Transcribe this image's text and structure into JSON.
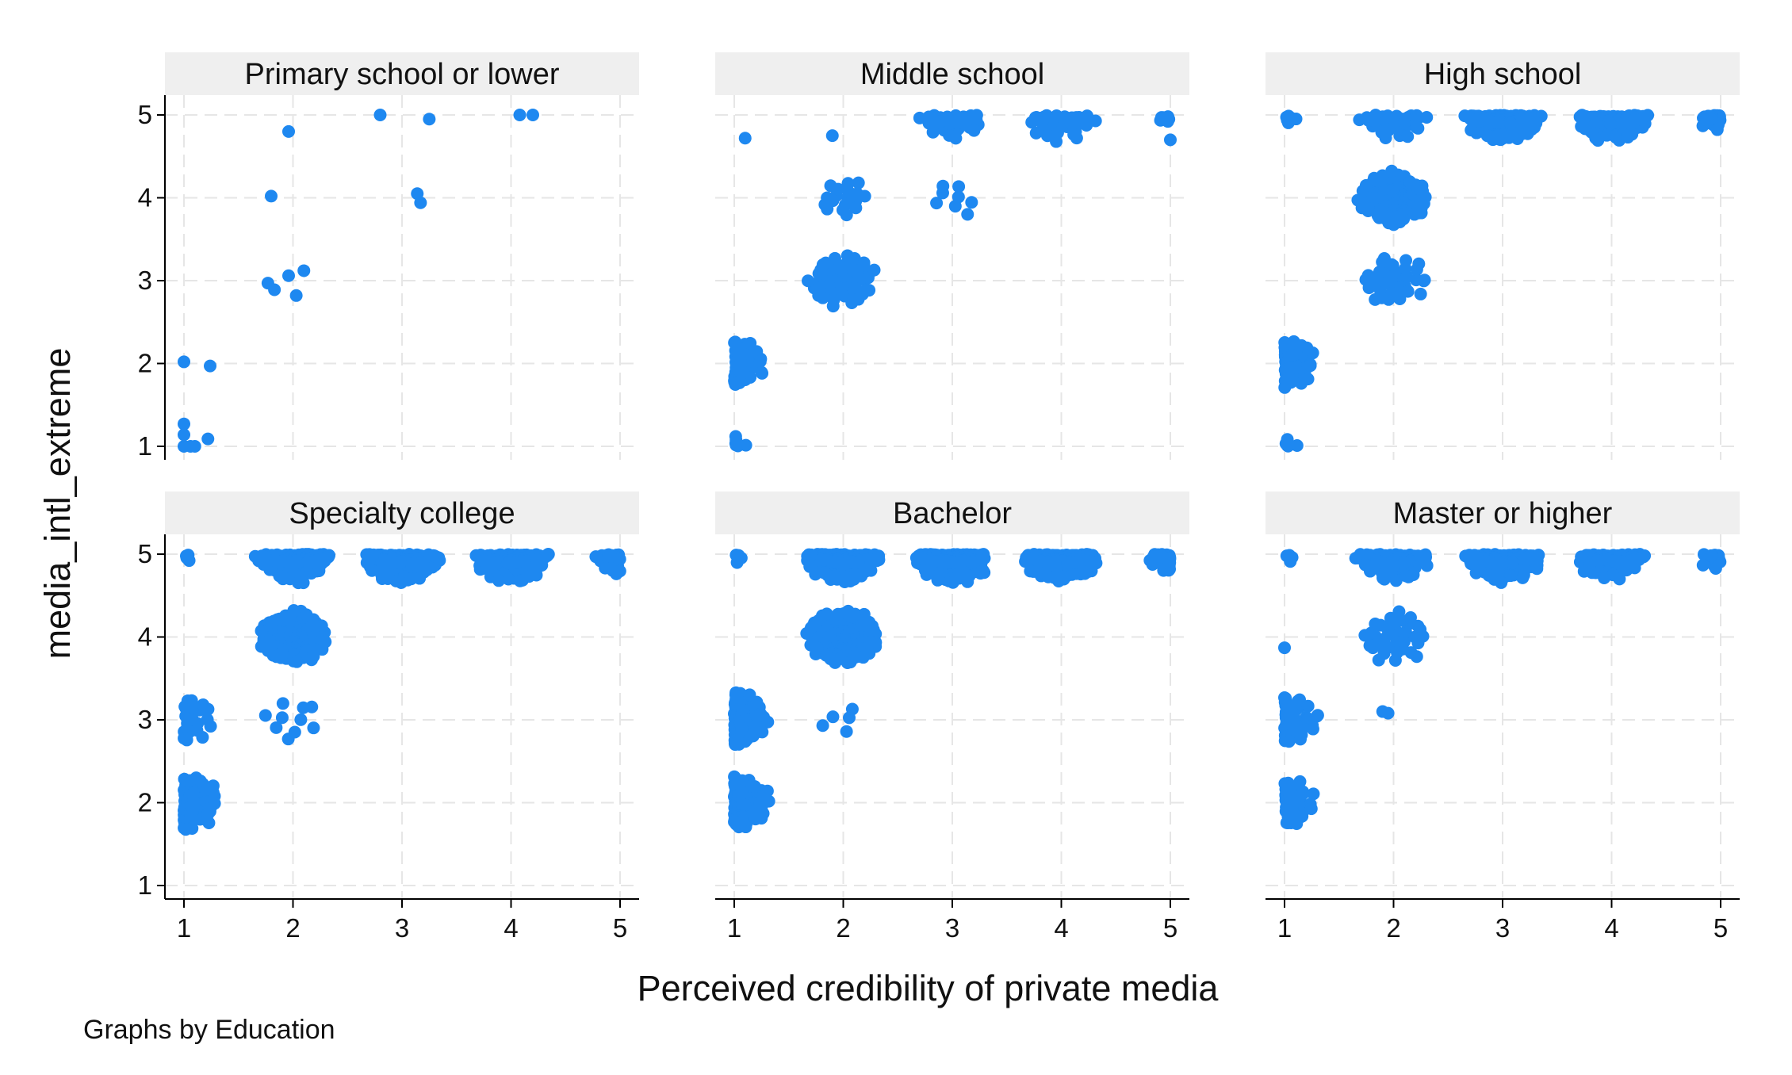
{
  "colors": {
    "marker": "#1E88F0",
    "strip_background": "#EFEFEF",
    "grid": "#E6E6E6",
    "axis": "#000000"
  },
  "xlabel": "Perceived credibility of private media",
  "ylabel": "media_intl_extreme",
  "note": "Graphs by Education",
  "chart_data": [
    {
      "type": "scatter",
      "title": "Primary school or lower",
      "xlim": [
        1,
        5
      ],
      "ylim": [
        1,
        5
      ],
      "xticks": [
        "1",
        "2",
        "3",
        "4",
        "5"
      ],
      "yticks": [
        "1",
        "2",
        "3",
        "4",
        "5"
      ],
      "show_xaxis": false,
      "show_yaxis": true,
      "grid": true,
      "points": [
        {
          "x": 1.0,
          "y": 1.27
        },
        {
          "x": 1.0,
          "y": 1.14
        },
        {
          "x": 1.0,
          "y": 1.0
        },
        {
          "x": 1.06,
          "y": 1.0
        },
        {
          "x": 1.1,
          "y": 1.0
        },
        {
          "x": 1.22,
          "y": 1.09
        },
        {
          "x": 1.0,
          "y": 2.02
        },
        {
          "x": 1.24,
          "y": 1.97
        },
        {
          "x": 1.77,
          "y": 2.97
        },
        {
          "x": 1.83,
          "y": 2.89
        },
        {
          "x": 1.96,
          "y": 3.06
        },
        {
          "x": 2.03,
          "y": 2.82
        },
        {
          "x": 2.1,
          "y": 3.12
        },
        {
          "x": 1.8,
          "y": 4.02
        },
        {
          "x": 1.96,
          "y": 4.8
        },
        {
          "x": 2.8,
          "y": 5.0
        },
        {
          "x": 3.14,
          "y": 4.05
        },
        {
          "x": 3.17,
          "y": 3.94
        },
        {
          "x": 3.25,
          "y": 4.95
        },
        {
          "x": 4.08,
          "y": 5.0
        },
        {
          "x": 4.2,
          "y": 5.0
        }
      ]
    },
    {
      "type": "scatter",
      "title": "Middle school",
      "xlim": [
        1,
        5
      ],
      "ylim": [
        1,
        5
      ],
      "xticks": [
        "1",
        "2",
        "3",
        "4",
        "5"
      ],
      "yticks": [
        "1",
        "2",
        "3",
        "4",
        "5"
      ],
      "show_xaxis": false,
      "show_yaxis": false,
      "grid": true,
      "clusters": [
        {
          "x": 1.0,
          "y": 1.0,
          "n": 8,
          "spread": 0.13
        },
        {
          "x": 1.0,
          "y": 2.0,
          "n": 55,
          "spread": 0.28
        },
        {
          "x": 2.0,
          "y": 3.0,
          "n": 65,
          "spread": 0.3
        },
        {
          "x": 2.0,
          "y": 4.0,
          "n": 18,
          "spread": 0.22
        },
        {
          "x": 3.0,
          "y": 5.0,
          "n": 45,
          "spread": 0.3
        },
        {
          "x": 3.0,
          "y": 4.0,
          "n": 7,
          "spread": 0.2
        },
        {
          "x": 4.0,
          "y": 5.0,
          "n": 50,
          "spread": 0.3
        },
        {
          "x": 5.0,
          "y": 5.0,
          "n": 6,
          "spread": 0.15
        }
      ],
      "points": [
        {
          "x": 1.1,
          "y": 4.72
        },
        {
          "x": 1.9,
          "y": 4.75
        },
        {
          "x": 3.14,
          "y": 3.8
        },
        {
          "x": 5.0,
          "y": 4.7
        }
      ]
    },
    {
      "type": "scatter",
      "title": "High school",
      "xlim": [
        1,
        5
      ],
      "ylim": [
        1,
        5
      ],
      "xticks": [
        "1",
        "2",
        "3",
        "4",
        "5"
      ],
      "yticks": [
        "1",
        "2",
        "3",
        "4",
        "5"
      ],
      "show_xaxis": false,
      "show_yaxis": false,
      "grid": true,
      "clusters": [
        {
          "x": 1.0,
          "y": 1.0,
          "n": 6,
          "spread": 0.12
        },
        {
          "x": 1.0,
          "y": 2.0,
          "n": 80,
          "spread": 0.28
        },
        {
          "x": 1.0,
          "y": 5.0,
          "n": 7,
          "spread": 0.15
        },
        {
          "x": 2.0,
          "y": 3.0,
          "n": 35,
          "spread": 0.3
        },
        {
          "x": 2.0,
          "y": 4.0,
          "n": 160,
          "spread": 0.3
        },
        {
          "x": 2.0,
          "y": 5.0,
          "n": 40,
          "spread": 0.3
        },
        {
          "x": 3.0,
          "y": 5.0,
          "n": 240,
          "spread": 0.32
        },
        {
          "x": 4.0,
          "y": 5.0,
          "n": 160,
          "spread": 0.3
        },
        {
          "x": 5.0,
          "y": 5.0,
          "n": 30,
          "spread": 0.2
        }
      ]
    },
    {
      "type": "scatter",
      "title": "Specialty college",
      "xlim": [
        1,
        5
      ],
      "ylim": [
        1,
        5
      ],
      "xticks": [
        "1",
        "2",
        "3",
        "4",
        "5"
      ],
      "yticks": [
        "1",
        "2",
        "3",
        "4",
        "5"
      ],
      "show_xaxis": true,
      "show_yaxis": true,
      "grid": true,
      "clusters": [
        {
          "x": 1.0,
          "y": 2.0,
          "n": 140,
          "spread": 0.3
        },
        {
          "x": 1.0,
          "y": 3.0,
          "n": 25,
          "spread": 0.28
        },
        {
          "x": 1.0,
          "y": 5.0,
          "n": 4,
          "spread": 0.12
        },
        {
          "x": 2.0,
          "y": 3.0,
          "n": 10,
          "spread": 0.28
        },
        {
          "x": 2.0,
          "y": 4.0,
          "n": 150,
          "spread": 0.3
        },
        {
          "x": 2.0,
          "y": 5.0,
          "n": 190,
          "spread": 0.32
        },
        {
          "x": 3.0,
          "y": 5.0,
          "n": 260,
          "spread": 0.32
        },
        {
          "x": 4.0,
          "y": 5.0,
          "n": 250,
          "spread": 0.32
        },
        {
          "x": 5.0,
          "y": 5.0,
          "n": 45,
          "spread": 0.22
        }
      ]
    },
    {
      "type": "scatter",
      "title": "Bachelor",
      "xlim": [
        1,
        5
      ],
      "ylim": [
        1,
        5
      ],
      "xticks": [
        "1",
        "2",
        "3",
        "4",
        "5"
      ],
      "yticks": [
        "1",
        "2",
        "3",
        "4",
        "5"
      ],
      "show_xaxis": true,
      "show_yaxis": false,
      "grid": true,
      "clusters": [
        {
          "x": 1.0,
          "y": 2.0,
          "n": 170,
          "spread": 0.3
        },
        {
          "x": 1.0,
          "y": 3.0,
          "n": 150,
          "spread": 0.3
        },
        {
          "x": 1.0,
          "y": 5.0,
          "n": 5,
          "spread": 0.13
        },
        {
          "x": 2.0,
          "y": 3.0,
          "n": 5,
          "spread": 0.2
        },
        {
          "x": 2.0,
          "y": 4.0,
          "n": 300,
          "spread": 0.3
        },
        {
          "x": 2.0,
          "y": 5.0,
          "n": 320,
          "spread": 0.32
        },
        {
          "x": 3.0,
          "y": 5.0,
          "n": 320,
          "spread": 0.32
        },
        {
          "x": 4.0,
          "y": 5.0,
          "n": 320,
          "spread": 0.32
        },
        {
          "x": 5.0,
          "y": 5.0,
          "n": 50,
          "spread": 0.2
        }
      ]
    },
    {
      "type": "scatter",
      "title": "Master or higher",
      "xlim": [
        1,
        5
      ],
      "ylim": [
        1,
        5
      ],
      "xticks": [
        "1",
        "2",
        "3",
        "4",
        "5"
      ],
      "yticks": [
        "1",
        "2",
        "3",
        "4",
        "5"
      ],
      "show_xaxis": true,
      "show_yaxis": false,
      "grid": true,
      "clusters": [
        {
          "x": 1.0,
          "y": 2.0,
          "n": 45,
          "spread": 0.28
        },
        {
          "x": 1.0,
          "y": 3.0,
          "n": 60,
          "spread": 0.3
        },
        {
          "x": 1.0,
          "y": 5.0,
          "n": 4,
          "spread": 0.12
        },
        {
          "x": 2.0,
          "y": 4.0,
          "n": 35,
          "spread": 0.3
        },
        {
          "x": 2.0,
          "y": 5.0,
          "n": 130,
          "spread": 0.32
        },
        {
          "x": 3.0,
          "y": 5.0,
          "n": 200,
          "spread": 0.32
        },
        {
          "x": 4.0,
          "y": 5.0,
          "n": 120,
          "spread": 0.3
        },
        {
          "x": 5.0,
          "y": 5.0,
          "n": 14,
          "spread": 0.2
        }
      ],
      "points": [
        {
          "x": 1.0,
          "y": 3.87
        },
        {
          "x": 1.9,
          "y": 3.1
        },
        {
          "x": 1.95,
          "y": 3.08
        }
      ]
    }
  ]
}
